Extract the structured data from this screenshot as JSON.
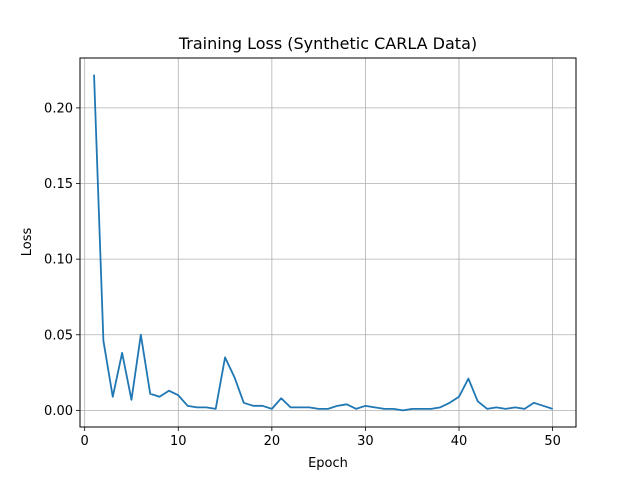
{
  "chart_data": {
    "type": "line",
    "title": "Training Loss (Synthetic CARLA Data)",
    "xlabel": "Epoch",
    "ylabel": "Loss",
    "xlim": [
      -0.5,
      52.5
    ],
    "ylim": [
      -0.011,
      0.233
    ],
    "xticks": [
      0,
      10,
      20,
      30,
      40,
      50
    ],
    "xtick_labels": [
      "0",
      "10",
      "20",
      "30",
      "40",
      "50"
    ],
    "yticks": [
      0.0,
      0.05,
      0.1,
      0.15,
      0.2
    ],
    "ytick_labels": [
      "0.00",
      "0.05",
      "0.10",
      "0.15",
      "0.20"
    ],
    "grid": true,
    "line_color": "#1f77b4",
    "series": [
      {
        "x": [
          1,
          2,
          3,
          4,
          5,
          6,
          7,
          8,
          9,
          10,
          11,
          12,
          13,
          14,
          15,
          16,
          17,
          18,
          19,
          20,
          21,
          22,
          23,
          24,
          25,
          26,
          27,
          28,
          29,
          30,
          31,
          32,
          33,
          34,
          35,
          36,
          37,
          38,
          39,
          40,
          41,
          42,
          43,
          44,
          45,
          46,
          47,
          48,
          49,
          50
        ],
        "values": [
          0.222,
          0.046,
          0.009,
          0.038,
          0.007,
          0.05,
          0.011,
          0.009,
          0.013,
          0.01,
          0.003,
          0.002,
          0.002,
          0.001,
          0.035,
          0.022,
          0.005,
          0.003,
          0.003,
          0.001,
          0.008,
          0.002,
          0.002,
          0.002,
          0.001,
          0.001,
          0.003,
          0.004,
          0.001,
          0.003,
          0.002,
          0.001,
          0.001,
          0.0,
          0.001,
          0.001,
          0.001,
          0.002,
          0.005,
          0.009,
          0.021,
          0.006,
          0.001,
          0.002,
          0.001,
          0.002,
          0.001,
          0.005,
          0.003,
          0.001
        ]
      }
    ]
  }
}
